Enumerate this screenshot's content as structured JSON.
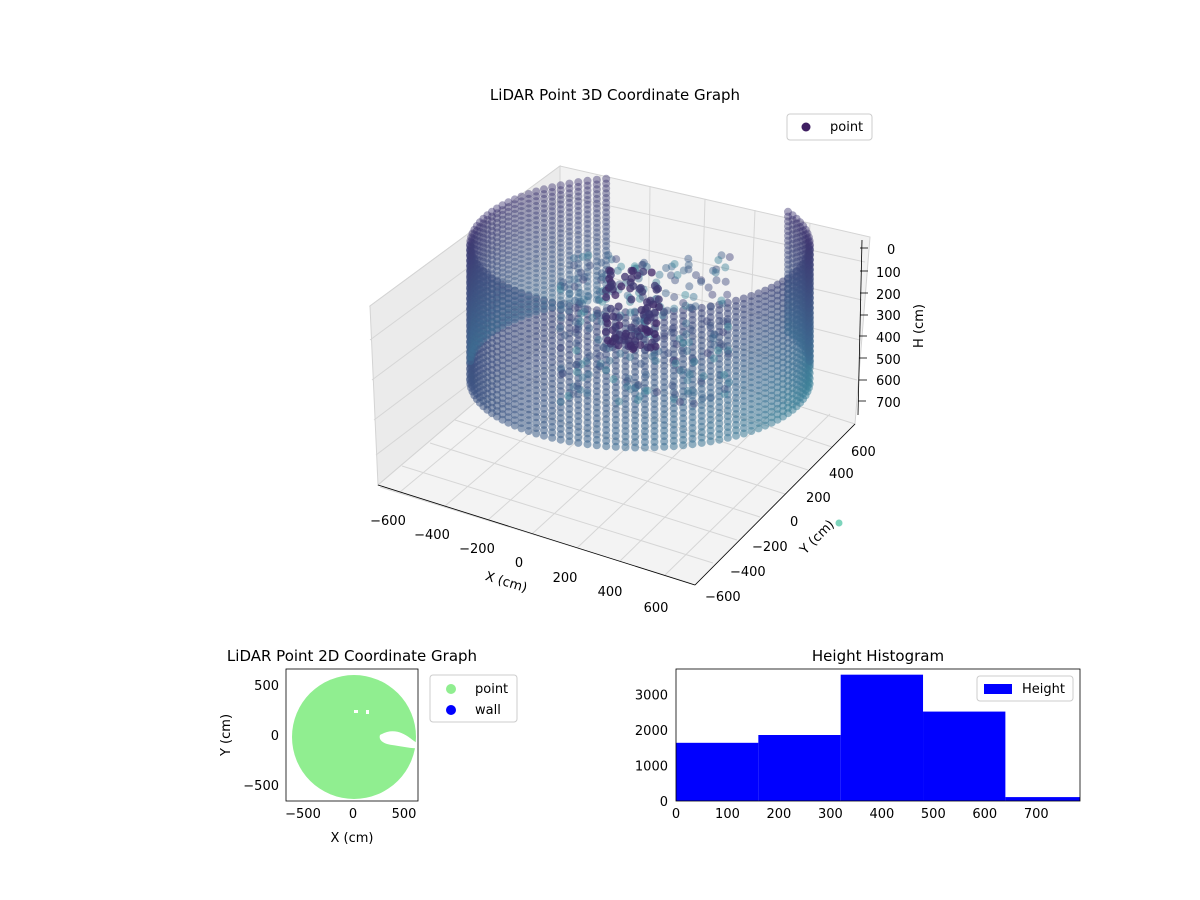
{
  "chart_data": [
    {
      "type": "scatter",
      "projection": "3d",
      "title": "LiDAR Point 3D Coordinate Graph",
      "xlabel": "X (cm)",
      "ylabel": "Y (cm)",
      "zlabel": "H (cm)",
      "xticks": [
        "−600",
        "−400",
        "−200",
        "0",
        "200",
        "400",
        "600"
      ],
      "yticks": [
        "−600",
        "−400",
        "−200",
        "0",
        "200",
        "400",
        "600"
      ],
      "zticks": [
        "0",
        "100",
        "200",
        "300",
        "400",
        "500",
        "600",
        "700"
      ],
      "xlim": [
        -650,
        650
      ],
      "ylim": [
        -650,
        650
      ],
      "zlim": [
        0,
        760
      ],
      "z_inverted": true,
      "colormap": "viridis",
      "legend": {
        "entries": [
          "point"
        ],
        "placement": "top-right"
      },
      "grid": true,
      "description_shape": "cylindrical wall of points, radius ~600 cm, height 0-700 cm, with interior clutter"
    },
    {
      "type": "scatter",
      "title": "LiDAR Point 2D Coordinate Graph",
      "xlabel": "X (cm)",
      "ylabel": "Y (cm)",
      "xticks": [
        "−500",
        "0",
        "500"
      ],
      "yticks": [
        "−500",
        "0",
        "500"
      ],
      "xlim": [
        -650,
        650
      ],
      "ylim": [
        -650,
        650
      ],
      "series": [
        {
          "name": "point",
          "color": "#90ee90"
        },
        {
          "name": "wall",
          "color": "#0000ff"
        }
      ],
      "legend": {
        "placement": "outside-right"
      }
    },
    {
      "type": "bar",
      "title": "Height Histogram",
      "xlabel": "",
      "ylabel": "",
      "bins": [
        {
          "from": 0,
          "to": 160,
          "count": 1640
        },
        {
          "from": 160,
          "to": 320,
          "count": 1860
        },
        {
          "from": 320,
          "to": 480,
          "count": 3560
        },
        {
          "from": 480,
          "to": 640,
          "count": 2520
        },
        {
          "from": 640,
          "to": 785,
          "count": 110
        }
      ],
      "xlim": [
        0,
        785
      ],
      "ylim": [
        0,
        3720
      ],
      "xticks": [
        "0",
        "100",
        "200",
        "300",
        "400",
        "500",
        "600",
        "700"
      ],
      "yticks": [
        "0",
        "1000",
        "2000",
        "3000"
      ],
      "series": [
        {
          "name": "Height",
          "color": "#0000ff"
        }
      ],
      "legend": {
        "placement": "top-right"
      }
    }
  ],
  "stray_marker_color": "#6fcfb5",
  "colors": {
    "wall_dark": "#3f1f62",
    "wall_mid": "#3e6c92",
    "wall_teal": "#3ea6a6",
    "pane": "#f2f2f2",
    "grid": "#d4d4d4"
  }
}
